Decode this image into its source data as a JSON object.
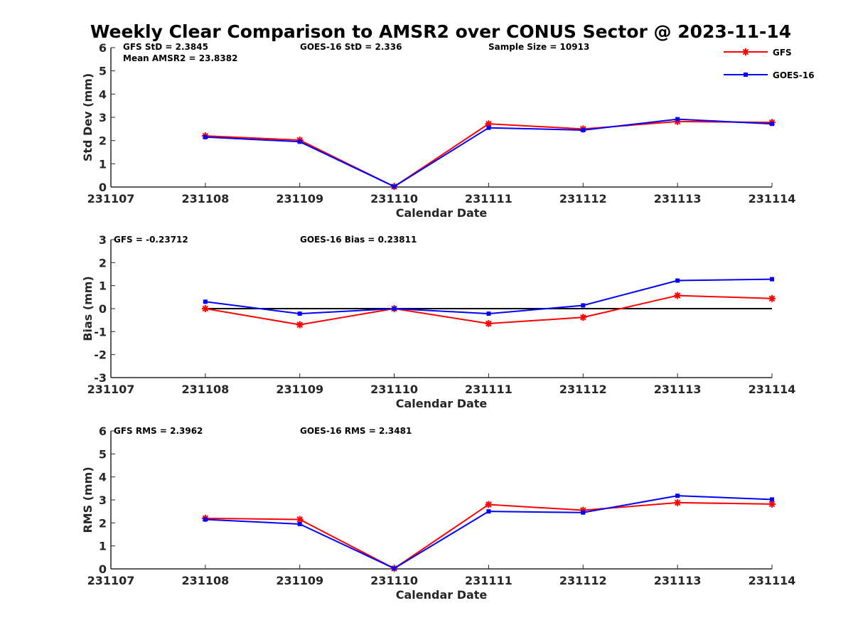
{
  "title": "Weekly Clear Comparison to AMSR2 over CONUS Sector @ 2023-11-14",
  "colors": {
    "gfs": "#ff0000",
    "goes": "#0000ff",
    "zero_line": "#000000",
    "axis": "#262626"
  },
  "legend": {
    "placement": "top-right",
    "entries": [
      "GFS",
      "GOES-16"
    ]
  },
  "chart_data": [
    {
      "type": "line",
      "xlabel": "Calendar Date",
      "ylabel": "Std Dev (mm)",
      "x": [
        "231107",
        "231108",
        "231109",
        "231110",
        "231111",
        "231112",
        "231113",
        "231114"
      ],
      "ylim": [
        0,
        6
      ],
      "yticks": [
        "0",
        "1",
        "2",
        "3",
        "4",
        "5",
        "6"
      ],
      "annotations": [
        "GFS StD = 2.3845",
        "GOES-16 StD = 2.336",
        "Sample Size = 10913",
        "Mean AMSR2 = 23.8382"
      ],
      "series": [
        {
          "name": "GFS",
          "x": [
            "231108",
            "231109",
            "231110",
            "231111",
            "231112",
            "231113",
            "231114"
          ],
          "values": [
            2.2,
            2.02,
            0.02,
            2.72,
            2.5,
            2.82,
            2.78
          ]
        },
        {
          "name": "GOES-16",
          "x": [
            "231108",
            "231109",
            "231110",
            "231111",
            "231112",
            "231113",
            "231114"
          ],
          "values": [
            2.15,
            1.95,
            0.02,
            2.55,
            2.45,
            2.92,
            2.72
          ]
        }
      ]
    },
    {
      "type": "line",
      "xlabel": "Calendar Date",
      "ylabel": "Bias (mm)",
      "x": [
        "231107",
        "231108",
        "231109",
        "231110",
        "231111",
        "231112",
        "231113",
        "231114"
      ],
      "ylim": [
        -3,
        3
      ],
      "yticks": [
        "-3",
        "-2",
        "-1",
        "0",
        "1",
        "2",
        "3"
      ],
      "zero_line": true,
      "annotations": [
        "GFS = -0.23712",
        "GOES-16 Bias  = 0.23811"
      ],
      "series": [
        {
          "name": "GFS",
          "x": [
            "231108",
            "231109",
            "231110",
            "231111",
            "231112",
            "231113",
            "231114"
          ],
          "values": [
            0.0,
            -0.7,
            0.0,
            -0.65,
            -0.38,
            0.57,
            0.44
          ]
        },
        {
          "name": "GOES-16",
          "x": [
            "231108",
            "231109",
            "231110",
            "231111",
            "231112",
            "231113",
            "231114"
          ],
          "values": [
            0.3,
            -0.22,
            0.0,
            -0.22,
            0.14,
            1.22,
            1.28
          ]
        }
      ]
    },
    {
      "type": "line",
      "xlabel": "Calendar Date",
      "ylabel": "RMS (mm)",
      "x": [
        "231107",
        "231108",
        "231109",
        "231110",
        "231111",
        "231112",
        "231113",
        "231114"
      ],
      "ylim": [
        0,
        6
      ],
      "yticks": [
        "0",
        "1",
        "2",
        "3",
        "4",
        "5",
        "6"
      ],
      "annotations": [
        "GFS RMS = 2.3962",
        "GOES-16 RMS = 2.3481"
      ],
      "series": [
        {
          "name": "GFS",
          "x": [
            "231108",
            "231109",
            "231110",
            "231111",
            "231112",
            "231113",
            "231114"
          ],
          "values": [
            2.2,
            2.15,
            0.02,
            2.8,
            2.55,
            2.88,
            2.82
          ]
        },
        {
          "name": "GOES-16",
          "x": [
            "231108",
            "231109",
            "231110",
            "231111",
            "231112",
            "231113",
            "231114"
          ],
          "values": [
            2.15,
            1.95,
            0.02,
            2.5,
            2.45,
            3.18,
            3.02
          ]
        }
      ]
    }
  ]
}
